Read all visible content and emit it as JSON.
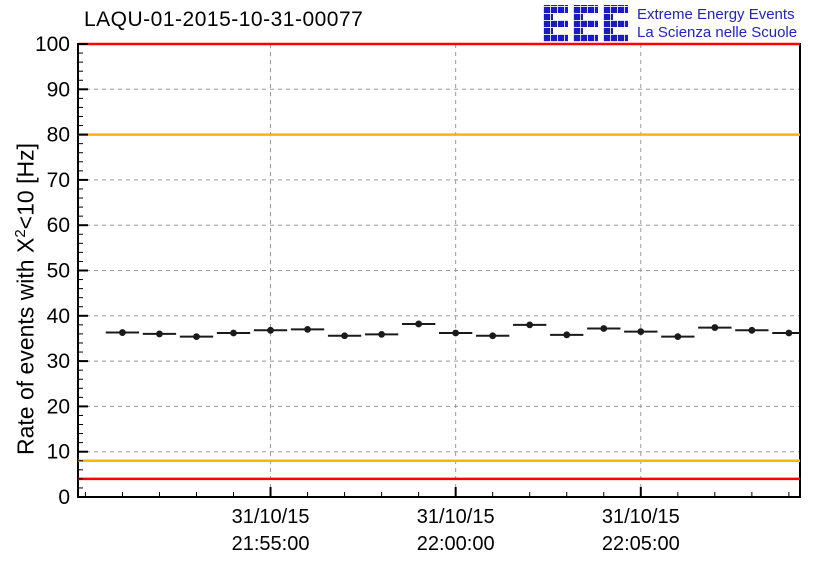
{
  "logo": {
    "letters": "EEE",
    "line1": "Extreme Energy Events",
    "line2": "La Scienza nelle Scuole",
    "color": "#2121cd"
  },
  "chart_data": {
    "type": "scatter",
    "title": "LAQU-01-2015-10-31-00077",
    "ylabel": "Rate of events with X²<10 [Hz]",
    "ylabel_parts": {
      "prefix": "Rate of events with X",
      "sup": "2",
      "suffix": "<10 [Hz]"
    },
    "xlabel": "",
    "ylim": [
      0,
      100
    ],
    "xlim": [
      0,
      19.5
    ],
    "yticks": [
      0,
      10,
      20,
      30,
      40,
      50,
      60,
      70,
      80,
      90,
      100
    ],
    "y_minor_step": 2,
    "x_minor_step": 1,
    "grid": true,
    "legend": "none",
    "xticks": [
      {
        "pos": 5.2,
        "date": "31/10/15",
        "time": "21:55:00"
      },
      {
        "pos": 10.2,
        "date": "31/10/15",
        "time": "22:00:00"
      },
      {
        "pos": 15.2,
        "date": "31/10/15",
        "time": "22:05:00"
      }
    ],
    "points": {
      "x": [
        1.2,
        2.2,
        3.2,
        4.2,
        5.2,
        6.2,
        7.2,
        8.2,
        9.2,
        10.2,
        11.2,
        12.2,
        13.2,
        14.2,
        15.2,
        16.2,
        17.2,
        18.2,
        19.2
      ],
      "y": [
        36.3,
        36.0,
        35.4,
        36.2,
        36.8,
        37.0,
        35.6,
        35.9,
        38.2,
        36.2,
        35.6,
        38.0,
        35.8,
        37.2,
        36.5,
        35.4,
        37.4,
        36.8,
        36.2
      ],
      "xerr": 0.45
    },
    "hlines": [
      {
        "y": 100,
        "color": "#ff0000"
      },
      {
        "y": 80,
        "color": "#ffb400"
      },
      {
        "y": 8,
        "color": "#ffb400"
      },
      {
        "y": 4,
        "color": "#ff0000"
      }
    ],
    "colors": {
      "marker": "#1a1a1a",
      "grid": "#999999",
      "frame": "#000000"
    }
  }
}
